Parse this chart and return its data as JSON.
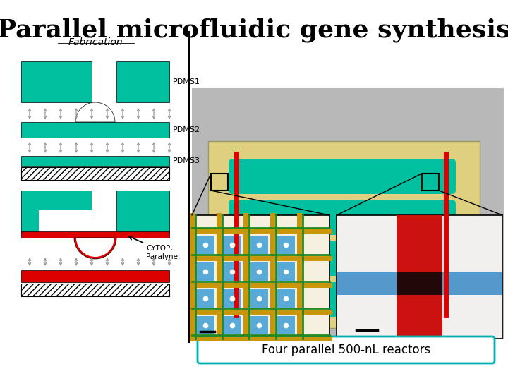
{
  "title": "Parallel microfluidic gene synthesis",
  "title_fontsize": 26,
  "title_color": "#000000",
  "background_color": "#ffffff",
  "fabrication_label": "Fabrication",
  "pdms1_label": "PDMS1",
  "pdms2_label": "PDMS2",
  "pdms3_label": "PDMS3",
  "cytop_label": "CYTOP,\nParalyne,",
  "footer_text": "Four parallel 500-nL reactors",
  "footer_box_color": "#00b0b0",
  "teal_color": "#00c0a0",
  "red_color": "#dd0000",
  "arrow_color": "#999999"
}
